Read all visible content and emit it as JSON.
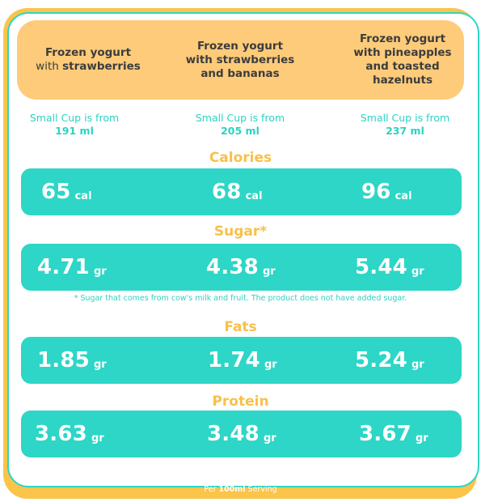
{
  "header": {
    "col1": {
      "bold": "Frozen yogurt",
      "plain": "with",
      "bold2": "strawberries"
    },
    "col2": {
      "line1": "Frozen yogurt",
      "line2": "with strawberries",
      "line3": "and bananas"
    },
    "col3": {
      "line1": "Frozen yogurt",
      "line2": "with pineapples",
      "line3": "and toasted",
      "line4": "hazelnuts"
    }
  },
  "cups": [
    {
      "label": "Small Cup is from",
      "amount": "191 ml"
    },
    {
      "label": "Small Cup is from",
      "amount": "205 ml"
    },
    {
      "label": "Small Cup is from",
      "amount": "237 ml"
    }
  ],
  "sections": {
    "calories": {
      "title": "Calories",
      "unit": "cal",
      "values": [
        "65",
        "68",
        "96"
      ]
    },
    "sugar": {
      "title": "Sugar*",
      "unit": "gr",
      "values": [
        "4.71",
        "4.38",
        "5.44"
      ]
    },
    "fats": {
      "title": "Fats",
      "unit": "gr",
      "values": [
        "1.85",
        "1.74",
        "5.24"
      ]
    },
    "protein": {
      "title": "Protein",
      "unit": "gr",
      "values": [
        "3.63",
        "3.48",
        "3.67"
      ]
    }
  },
  "footnote": "* Sugar that comes from cow's milk and fruit. The product does not have added sugar.",
  "serving": {
    "prefix": "Per",
    "amount": "100ml",
    "suffix": "Serving"
  },
  "colors": {
    "teal": "#2dd6c6",
    "orange": "#fbc44a",
    "header_orange": "#fdcb7a",
    "title_yellow": "#f8c04a"
  }
}
